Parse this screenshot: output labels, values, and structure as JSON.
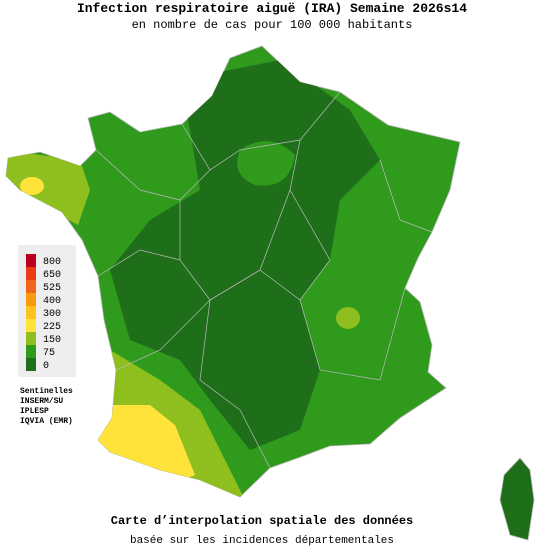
{
  "title": "Infection respiratoire aiguë (IRA) Semaine 2026s14",
  "subtitle": "en nombre de cas pour 100 000 habitants",
  "legend": {
    "levels": [
      {
        "value": 800,
        "color": "#b8001e"
      },
      {
        "value": 650,
        "color": "#e83a14"
      },
      {
        "value": 525,
        "color": "#f2641a"
      },
      {
        "value": 400,
        "color": "#f99a12"
      },
      {
        "value": 300,
        "color": "#ffc21e"
      },
      {
        "value": 225,
        "color": "#ffe23a"
      },
      {
        "value": 150,
        "color": "#8fbf1e"
      },
      {
        "value": 75,
        "color": "#2f9a1c"
      },
      {
        "value": 0,
        "color": "#1e6e1a"
      }
    ],
    "sources": [
      "Sentinelles",
      "INSERM/SU",
      "IPLESP",
      "IQVIA (EMR)"
    ]
  },
  "footer": {
    "title": "Carte d’interpolation spatiale des données",
    "subtitle": "basée sur les incidences départementales"
  }
}
